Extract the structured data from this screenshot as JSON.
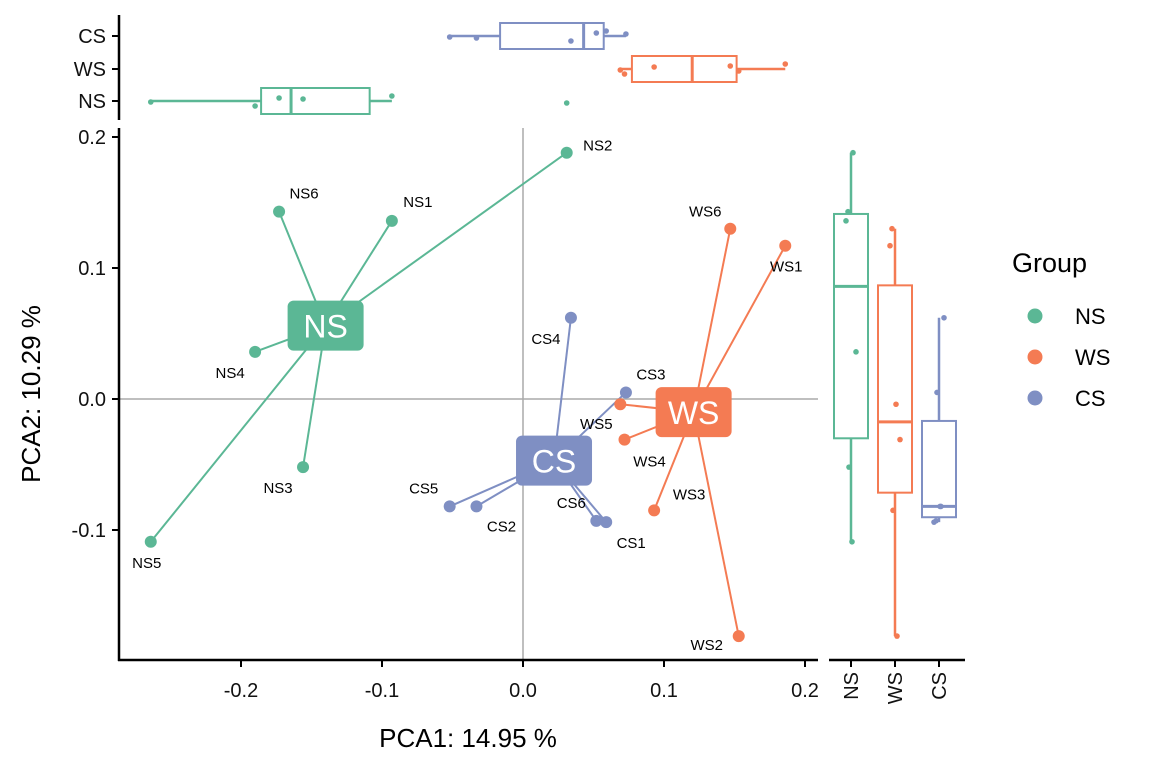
{
  "chart_data": {
    "type": "scatter",
    "xlabel": "PCA1:  14.95 %",
    "ylabel": "PCA2:  10.29 %",
    "xlim": [
      -0.285,
      0.21
    ],
    "ylim": [
      -0.2,
      0.21
    ],
    "xticks": [
      {
        "v": -0.2,
        "label": "-0.2"
      },
      {
        "v": -0.1,
        "label": "-0.1"
      },
      {
        "v": 0.0,
        "label": "0.0"
      },
      {
        "v": 0.1,
        "label": "0.1"
      },
      {
        "v": 0.2,
        "label": "0.2"
      }
    ],
    "yticks": [
      {
        "v": -0.1,
        "label": "-0.1"
      },
      {
        "v": 0.0,
        "label": "0.0"
      },
      {
        "v": 0.1,
        "label": "0.1"
      },
      {
        "v": 0.2,
        "label": "0.2"
      }
    ],
    "reference_lines": {
      "x": 0,
      "y": 0
    },
    "grid": false,
    "legend": {
      "title": "Group",
      "placement": "right"
    },
    "groups": [
      {
        "name": "NS",
        "color": "#5BB795",
        "centroid": [
          -0.14,
          0.056
        ],
        "points": [
          {
            "label": "NS1",
            "x": -0.093,
            "y": 0.136
          },
          {
            "label": "NS2",
            "x": 0.031,
            "y": 0.188
          },
          {
            "label": "NS3",
            "x": -0.156,
            "y": -0.052
          },
          {
            "label": "NS4",
            "x": -0.19,
            "y": 0.036
          },
          {
            "label": "NS5",
            "x": -0.264,
            "y": -0.109
          },
          {
            "label": "NS6",
            "x": -0.173,
            "y": 0.143
          }
        ]
      },
      {
        "name": "WS",
        "color": "#F47B53",
        "centroid": [
          0.121,
          -0.01
        ],
        "points": [
          {
            "label": "WS1",
            "x": 0.186,
            "y": 0.117
          },
          {
            "label": "WS2",
            "x": 0.153,
            "y": -0.181
          },
          {
            "label": "WS3",
            "x": 0.093,
            "y": -0.085
          },
          {
            "label": "WS4",
            "x": 0.072,
            "y": -0.031
          },
          {
            "label": "WS5",
            "x": 0.069,
            "y": -0.004
          },
          {
            "label": "WS6",
            "x": 0.147,
            "y": 0.13
          }
        ]
      },
      {
        "name": "CS",
        "color": "#7F8FC3",
        "centroid": [
          0.022,
          -0.047
        ],
        "points": [
          {
            "label": "CS1",
            "x": 0.059,
            "y": -0.094
          },
          {
            "label": "CS2",
            "x": -0.033,
            "y": -0.082
          },
          {
            "label": "CS3",
            "x": 0.073,
            "y": 0.005
          },
          {
            "label": "CS4",
            "x": 0.034,
            "y": 0.062
          },
          {
            "label": "CS5",
            "x": -0.052,
            "y": -0.082
          },
          {
            "label": "CS6",
            "x": 0.052,
            "y": -0.093
          }
        ]
      }
    ],
    "marginal_boxplots": {
      "top": {
        "variable": "PCA1",
        "categories": [
          "CS",
          "WS",
          "NS"
        ]
      },
      "right": {
        "variable": "PCA2",
        "categories": [
          "NS",
          "WS",
          "CS"
        ]
      }
    }
  }
}
